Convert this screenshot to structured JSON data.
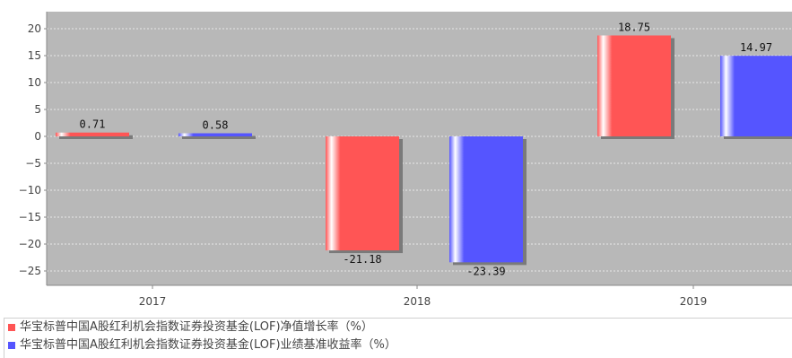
{
  "chart_data": {
    "type": "bar",
    "title": "",
    "categories": [
      "2017",
      "2018",
      "2019"
    ],
    "series": [
      {
        "name": "华宝标普中国A股红利机会指数证券投资基金(LOF)净值增长率（%）",
        "color": "#ff5555",
        "values": [
          0.71,
          -21.18,
          18.75
        ],
        "labels": [
          "0.71",
          "-21.18",
          "18.75"
        ]
      },
      {
        "name": "华宝标普中国A股红利机会指数证券投资基金(LOF)业绩基准收益率（%）",
        "color": "#5555ff",
        "values": [
          0.58,
          -23.39,
          14.97
        ],
        "labels": [
          "0.58",
          "-23.39",
          "14.97"
        ]
      }
    ],
    "ylim": [
      -28,
      22
    ],
    "yticks": [
      20,
      15,
      10,
      5,
      0,
      -5,
      -10,
      -15,
      -20,
      -25
    ],
    "ytick_labels": [
      "20",
      "15",
      "10",
      "5",
      "0",
      "−5",
      "−10",
      "−15",
      "−20",
      "−25"
    ],
    "grid": true,
    "legend_position": "bottom",
    "plot_background": "#b8b8b8"
  }
}
